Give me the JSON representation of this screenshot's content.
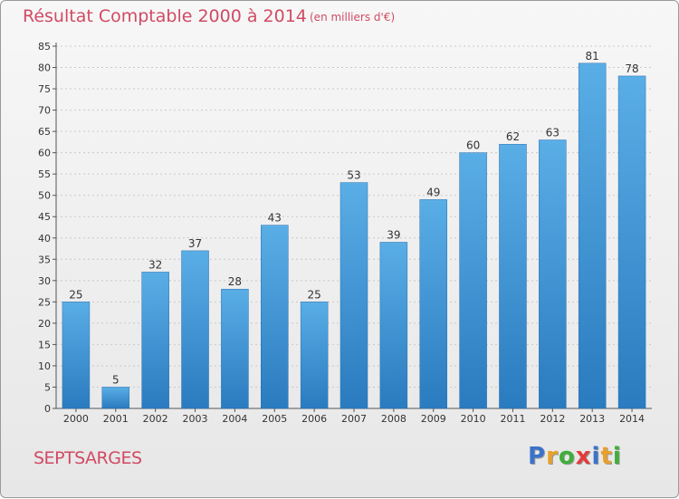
{
  "title": "Résultat Comptable 2000 à 2014",
  "subtitle": "(en milliers d'€)",
  "location": "SEPTSARGES",
  "brand": {
    "letters": [
      "P",
      "r",
      "o",
      "x",
      "i",
      "t",
      "i"
    ],
    "colors": [
      "#3a73c9",
      "#e8a02a",
      "#3fae3a",
      "#e43c3c",
      "#3a73c9",
      "#e8a02a",
      "#3fae3a"
    ]
  },
  "colors": {
    "accent": "#d04a63",
    "bar_light": "#5aaee6",
    "bar_dark": "#2a7bbf"
  },
  "chart_data": {
    "type": "bar",
    "title": "Résultat Comptable 2000 à 2014",
    "xlabel": "",
    "ylabel": "",
    "categories": [
      "2000",
      "2001",
      "2002",
      "2003",
      "2004",
      "2005",
      "2006",
      "2007",
      "2008",
      "2009",
      "2010",
      "2011",
      "2012",
      "2013",
      "2014"
    ],
    "values": [
      25,
      5,
      32,
      37,
      28,
      43,
      25,
      53,
      39,
      49,
      60,
      62,
      63,
      81,
      78
    ],
    "ylim": [
      0,
      85
    ],
    "yticks": [
      0,
      5,
      10,
      15,
      20,
      25,
      30,
      35,
      40,
      45,
      50,
      55,
      60,
      65,
      70,
      75,
      80,
      85
    ],
    "grid": true
  }
}
